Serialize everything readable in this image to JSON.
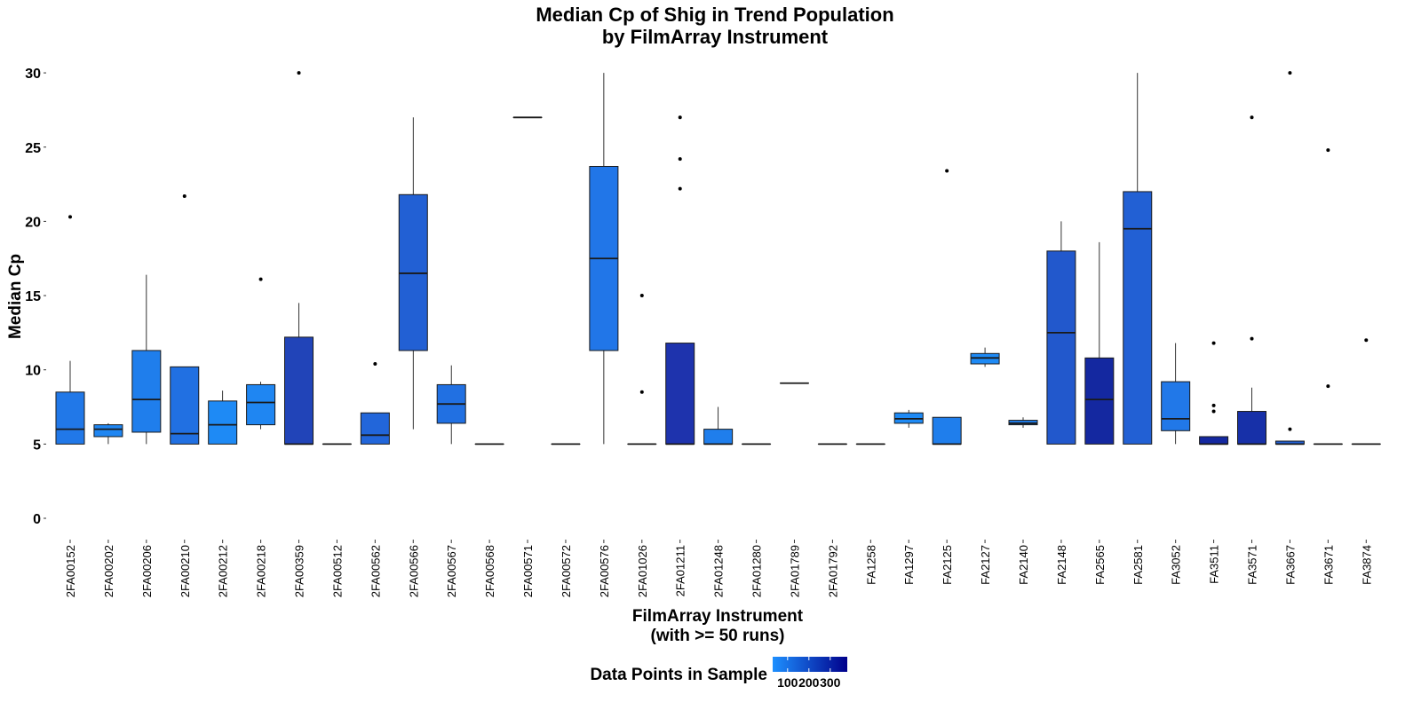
{
  "chart_data": {
    "type": "box",
    "title_lines": [
      "Median Cp of Shig in Trend Population",
      "by FilmArray Instrument"
    ],
    "xlabel_lines": [
      "FilmArray Instrument",
      "(with >= 50 runs)"
    ],
    "ylabel": "Median Cp",
    "ylim": [
      -1,
      31
    ],
    "yticks": [
      0,
      5,
      10,
      15,
      20,
      25,
      30
    ],
    "grid": false,
    "legend": {
      "title": "Data Points in Sample",
      "position": "bottom",
      "ticks": [
        "100",
        "200",
        "300"
      ],
      "range": [
        30,
        380
      ],
      "color_low": "#1e90ff",
      "color_high": "#00008b"
    },
    "categories": [
      "2FA00152",
      "2FA00202",
      "2FA00206",
      "2FA00210",
      "2FA00212",
      "2FA00218",
      "2FA00359",
      "2FA00512",
      "2FA00562",
      "2FA00566",
      "2FA00567",
      "2FA00568",
      "2FA00571",
      "2FA00572",
      "2FA00576",
      "2FA01026",
      "2FA01211",
      "2FA01248",
      "2FA01280",
      "2FA01789",
      "2FA01792",
      "FA1258",
      "FA1297",
      "FA2125",
      "FA2127",
      "FA2140",
      "FA2148",
      "FA2565",
      "FA2581",
      "FA3052",
      "FA3511",
      "FA3571",
      "FA3667",
      "FA3671",
      "FA3874"
    ],
    "boxes": [
      {
        "low": 5,
        "q1": 5,
        "median": 6,
        "q3": 8.5,
        "high": 10.6,
        "outliers": [
          20.3
        ],
        "fill": "#2178e8"
      },
      {
        "low": 5,
        "q1": 5.5,
        "median": 6,
        "q3": 6.3,
        "high": 6.4,
        "outliers": [],
        "fill": "#1f86f2"
      },
      {
        "low": 5,
        "q1": 5.8,
        "median": 8,
        "q3": 11.3,
        "high": 16.4,
        "outliers": [],
        "fill": "#1f7eec"
      },
      {
        "low": 5,
        "q1": 5,
        "median": 5.7,
        "q3": 10.2,
        "high": 10.2,
        "outliers": [
          21.7
        ],
        "fill": "#2170e2"
      },
      {
        "low": 5,
        "q1": 5,
        "median": 6.3,
        "q3": 7.9,
        "high": 8.6,
        "outliers": [],
        "fill": "#1e8af5"
      },
      {
        "low": 6,
        "q1": 6.3,
        "median": 7.8,
        "q3": 9.0,
        "high": 9.2,
        "outliers": [
          16.1
        ],
        "fill": "#1f86f2"
      },
      {
        "low": 5,
        "q1": 5,
        "median": 5,
        "q3": 12.2,
        "high": 14.5,
        "outliers": [
          30
        ],
        "fill": "#2144b8"
      },
      {
        "low": 5,
        "q1": 5,
        "median": 5,
        "q3": 5,
        "high": 5,
        "outliers": [],
        "fill": "#1f86f2"
      },
      {
        "low": 5,
        "q1": 5,
        "median": 5.6,
        "q3": 7.1,
        "high": 7.1,
        "outliers": [
          10.4
        ],
        "fill": "#2266da"
      },
      {
        "low": 6,
        "q1": 11.3,
        "median": 16.5,
        "q3": 21.8,
        "high": 27,
        "outliers": [],
        "fill": "#2260d4"
      },
      {
        "low": 5,
        "q1": 6.4,
        "median": 7.7,
        "q3": 9.0,
        "high": 10.3,
        "outliers": [],
        "fill": "#2170e2"
      },
      {
        "low": 5,
        "q1": 5,
        "median": 5,
        "q3": 5,
        "high": 5,
        "outliers": [],
        "fill": "#1f86f2"
      },
      {
        "low": 27,
        "q1": 27,
        "median": 27,
        "q3": 27,
        "high": 27,
        "outliers": [],
        "fill": "#1f86f2"
      },
      {
        "low": 5,
        "q1": 5,
        "median": 5,
        "q3": 5,
        "high": 5,
        "outliers": [],
        "fill": "#1f86f2"
      },
      {
        "low": 5,
        "q1": 11.3,
        "median": 17.5,
        "q3": 23.7,
        "high": 30,
        "outliers": [],
        "fill": "#2176e8"
      },
      {
        "low": 5,
        "q1": 5,
        "median": 5,
        "q3": 5,
        "high": 5,
        "outliers": [
          15,
          8.5
        ],
        "fill": "#1f86f2"
      },
      {
        "low": 5,
        "q1": 5,
        "median": 5,
        "q3": 11.8,
        "high": 11.8,
        "outliers": [
          27,
          24.2,
          22.2
        ],
        "fill": "#1e33ad"
      },
      {
        "low": 5,
        "q1": 5,
        "median": 5,
        "q3": 6.0,
        "high": 7.5,
        "outliers": [],
        "fill": "#1f7eec"
      },
      {
        "low": 5,
        "q1": 5,
        "median": 5,
        "q3": 5,
        "high": 5,
        "outliers": [],
        "fill": "#1f86f2"
      },
      {
        "low": 9.1,
        "q1": 9.1,
        "median": 9.1,
        "q3": 9.1,
        "high": 9.1,
        "outliers": [],
        "fill": "#1f86f2"
      },
      {
        "low": 5,
        "q1": 5,
        "median": 5,
        "q3": 5,
        "high": 5,
        "outliers": [],
        "fill": "#1f86f2"
      },
      {
        "low": 5,
        "q1": 5,
        "median": 5,
        "q3": 5,
        "high": 5,
        "outliers": [],
        "fill": "#1f86f2"
      },
      {
        "low": 6.1,
        "q1": 6.4,
        "median": 6.7,
        "q3": 7.1,
        "high": 7.3,
        "outliers": [],
        "fill": "#1e8af5"
      },
      {
        "low": 5,
        "q1": 5,
        "median": 5,
        "q3": 6.8,
        "high": 6.8,
        "outliers": [
          23.4
        ],
        "fill": "#1f7eec"
      },
      {
        "low": 10.2,
        "q1": 10.4,
        "median": 10.8,
        "q3": 11.1,
        "high": 11.5,
        "outliers": [],
        "fill": "#1e8af5"
      },
      {
        "low": 6.1,
        "q1": 6.3,
        "median": 6.4,
        "q3": 6.6,
        "high": 6.8,
        "outliers": [],
        "fill": "#1f7eec"
      },
      {
        "low": 5,
        "q1": 5,
        "median": 12.5,
        "q3": 18,
        "high": 20,
        "outliers": [],
        "fill": "#2258cc"
      },
      {
        "low": 5,
        "q1": 5,
        "median": 8,
        "q3": 10.8,
        "high": 18.6,
        "outliers": [],
        "fill": "#1428a0"
      },
      {
        "low": 5,
        "q1": 5,
        "median": 19.5,
        "q3": 22,
        "high": 30,
        "outliers": [],
        "fill": "#2260d4"
      },
      {
        "low": 5,
        "q1": 5.9,
        "median": 6.7,
        "q3": 9.2,
        "high": 11.8,
        "outliers": [],
        "fill": "#2178e8"
      },
      {
        "low": 5,
        "q1": 5,
        "median": 5,
        "q3": 5.5,
        "high": 5.5,
        "outliers": [
          11.8,
          7.6,
          7.2
        ],
        "fill": "#1428a0"
      },
      {
        "low": 5,
        "q1": 5,
        "median": 5,
        "q3": 7.2,
        "high": 8.8,
        "outliers": [
          27,
          12.1
        ],
        "fill": "#1730a8"
      },
      {
        "low": 5,
        "q1": 5,
        "median": 5,
        "q3": 5.2,
        "high": 5.2,
        "outliers": [
          30,
          6
        ],
        "fill": "#2260d4"
      },
      {
        "low": 5,
        "q1": 5,
        "median": 5,
        "q3": 5,
        "high": 5,
        "outliers": [
          24.8,
          8.9
        ],
        "fill": "#1f86f2"
      },
      {
        "low": 5,
        "q1": 5,
        "median": 5,
        "q3": 5,
        "high": 5,
        "outliers": [
          12
        ],
        "fill": "#1f86f2"
      }
    ]
  }
}
